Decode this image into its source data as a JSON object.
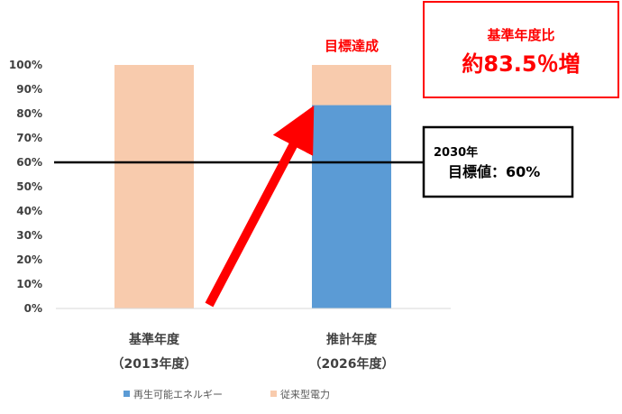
{
  "chart_data": {
    "type": "bar",
    "stacked": true,
    "categories": [
      [
        "基準年度",
        "（2013年度）"
      ],
      [
        "推計年度",
        "（2026年度）"
      ]
    ],
    "series": [
      {
        "name": "再生可能エネルギー",
        "values": [
          0,
          83.5
        ],
        "color": "#5b9bd5"
      },
      {
        "name": "従来型電力",
        "values": [
          100,
          16.5
        ],
        "color": "#f8cbad"
      }
    ],
    "y_ticks": [
      "0%",
      "10%",
      "20%",
      "30%",
      "40%",
      "50%",
      "60%",
      "70%",
      "80%",
      "90%",
      "100%"
    ],
    "ylim": [
      0,
      100
    ],
    "grid": false,
    "legend_position": "bottom",
    "target_line": {
      "value": 60,
      "year_label": "2030年",
      "value_label": "目標値：60%"
    },
    "achievement_label": "目標達成",
    "badge": {
      "line1": "基準年度比",
      "line2": "約83.5％増"
    },
    "arrow_color": "#ff0000"
  }
}
